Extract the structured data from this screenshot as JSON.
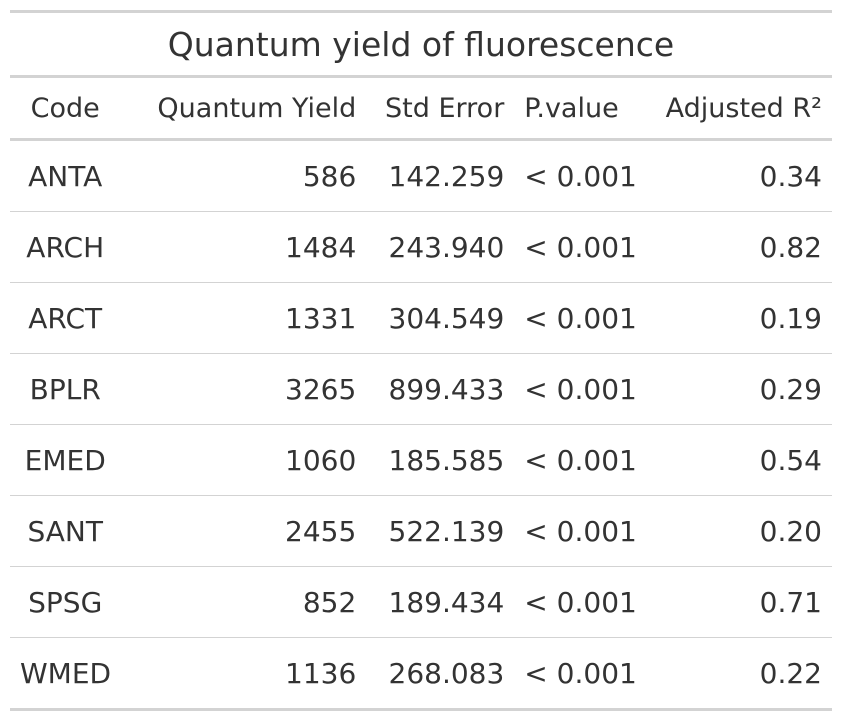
{
  "table": {
    "title": "Quantum yield of fluorescence",
    "columns": [
      "Code",
      "Quantum Yield",
      "Std Error",
      "P.value",
      "Adjusted R²"
    ],
    "rows": [
      [
        "ANTA",
        "586",
        "142.259",
        "< 0.001",
        "0.34"
      ],
      [
        "ARCH",
        "1484",
        "243.940",
        "< 0.001",
        "0.82"
      ],
      [
        "ARCT",
        "1331",
        "304.549",
        "< 0.001",
        "0.19"
      ],
      [
        "BPLR",
        "3265",
        "899.433",
        "< 0.001",
        "0.29"
      ],
      [
        "EMED",
        "1060",
        "185.585",
        "< 0.001",
        "0.54"
      ],
      [
        "SANT",
        "2455",
        "522.139",
        "< 0.001",
        "0.20"
      ],
      [
        "SPSG",
        "852",
        "189.434",
        "< 0.001",
        "0.71"
      ],
      [
        "WMED",
        "1136",
        "268.083",
        "< 0.001",
        "0.22"
      ]
    ]
  },
  "colors": {
    "text": "#333333",
    "rule": "#d3d3d3",
    "background": "#ffffff"
  }
}
